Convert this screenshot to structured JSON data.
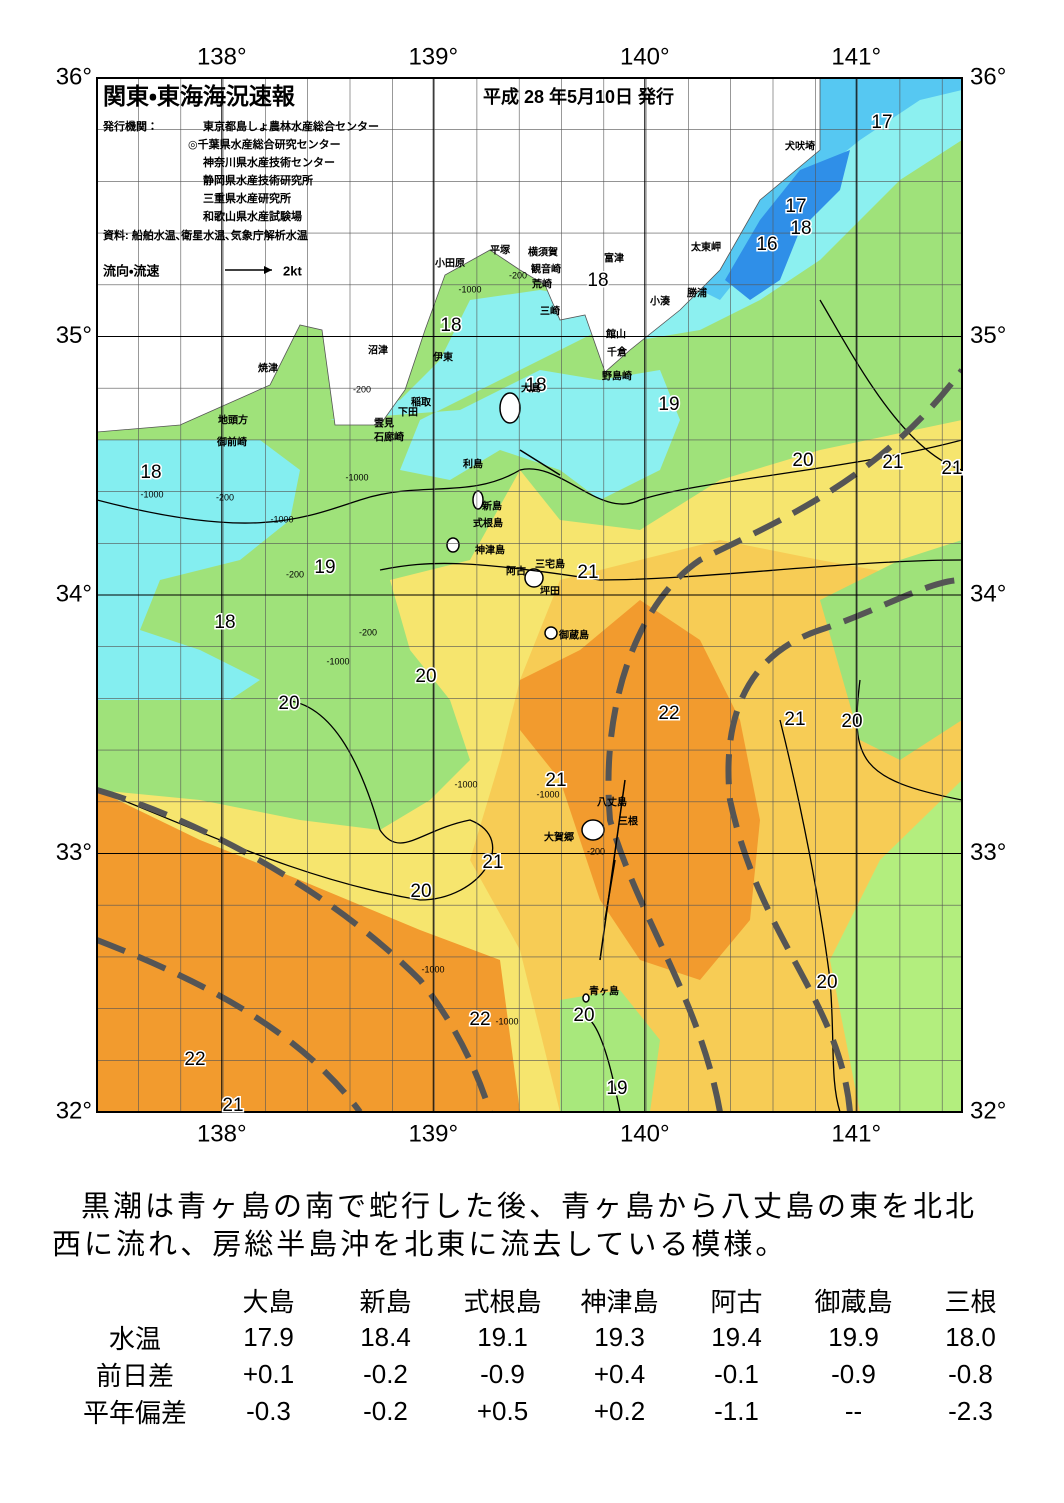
{
  "header": {
    "title": "関東・東海海況速報",
    "date": "平成 28 年5月10日 発行",
    "issuer_label": "発行機関：",
    "issuers": [
      "東京都島しょ農林水産総合センター",
      "◎千葉県水産総合研究センター",
      "神奈川県水産技術センター",
      "静岡県水産技術研究所",
      "三重県水産研究所",
      "和歌山県水産試験場"
    ],
    "source": "資料: 船舶水温､衛星水温､気象庁解析水温",
    "legend_label": "流向・流速",
    "legend_scale": "2kt"
  },
  "map": {
    "lon_range": [
      137.41,
      141.5
    ],
    "lat_range": [
      32,
      36
    ],
    "lon_ticks": [
      {
        "value": 138,
        "label": "138°"
      },
      {
        "value": 139,
        "label": "139°"
      },
      {
        "value": 140,
        "label": "140°"
      },
      {
        "value": 141,
        "label": "141°"
      }
    ],
    "lat_ticks": [
      {
        "value": 36,
        "label": "36°"
      },
      {
        "value": 35,
        "label": "35°"
      },
      {
        "value": 34,
        "label": "34°"
      },
      {
        "value": 33,
        "label": "33°"
      },
      {
        "value": 32,
        "label": "32°"
      }
    ],
    "contour_labels": [
      17,
      17,
      18,
      16,
      18,
      18,
      18,
      19,
      20,
      21,
      21,
      18,
      19,
      21,
      18,
      20,
      22,
      21,
      20,
      20,
      21,
      21,
      20,
      20,
      22,
      20,
      22,
      19,
      21
    ],
    "depth_labels": [
      "-200",
      "-1000",
      "-200",
      "-1000",
      "-200",
      "-200",
      "-1000",
      "-1000",
      "-200",
      "-1000",
      "-1000",
      "-1000",
      "-1000",
      "-200",
      "-1000"
    ],
    "places": [
      "犬吠埼",
      "太東岬",
      "勝浦",
      "小湊",
      "富津",
      "観音崎",
      "横須賀",
      "平塚",
      "小田原",
      "荒崎",
      "三崎",
      "館山",
      "千倉",
      "野島崎",
      "沼津",
      "伊東",
      "稲取",
      "下田",
      "雲見",
      "石廊崎",
      "焼津",
      "地頭方",
      "御前崎",
      "大島",
      "利島",
      "新島",
      "式根島",
      "神津島",
      "三宅島",
      "阿古",
      "坪田",
      "御蔵島",
      "八丈島",
      "三根",
      "大賀郷",
      "青ヶ島"
    ]
  },
  "description": "黒潮は青ヶ島の南で蛇行した後、青ヶ島から八丈島の東を北北西に流れ、房総半島沖を北東に流去している模様。",
  "table": {
    "columns": [
      "大島",
      "新島",
      "式根島",
      "神津島",
      "阿古",
      "御蔵島",
      "三根"
    ],
    "rows": [
      {
        "label": "水温",
        "values": [
          "17.9",
          "18.4",
          "19.1",
          "19.3",
          "19.4",
          "19.9",
          "18.0"
        ]
      },
      {
        "label": "前日差",
        "values": [
          "+0.1",
          "-0.2",
          "-0.9",
          "+0.4",
          "-0.1",
          "-0.9",
          "-0.8"
        ]
      },
      {
        "label": "平年偏差",
        "values": [
          "-0.3",
          "-0.2",
          "+0.5",
          "+0.2",
          "-1.1",
          "--",
          "-2.3"
        ]
      }
    ]
  }
}
